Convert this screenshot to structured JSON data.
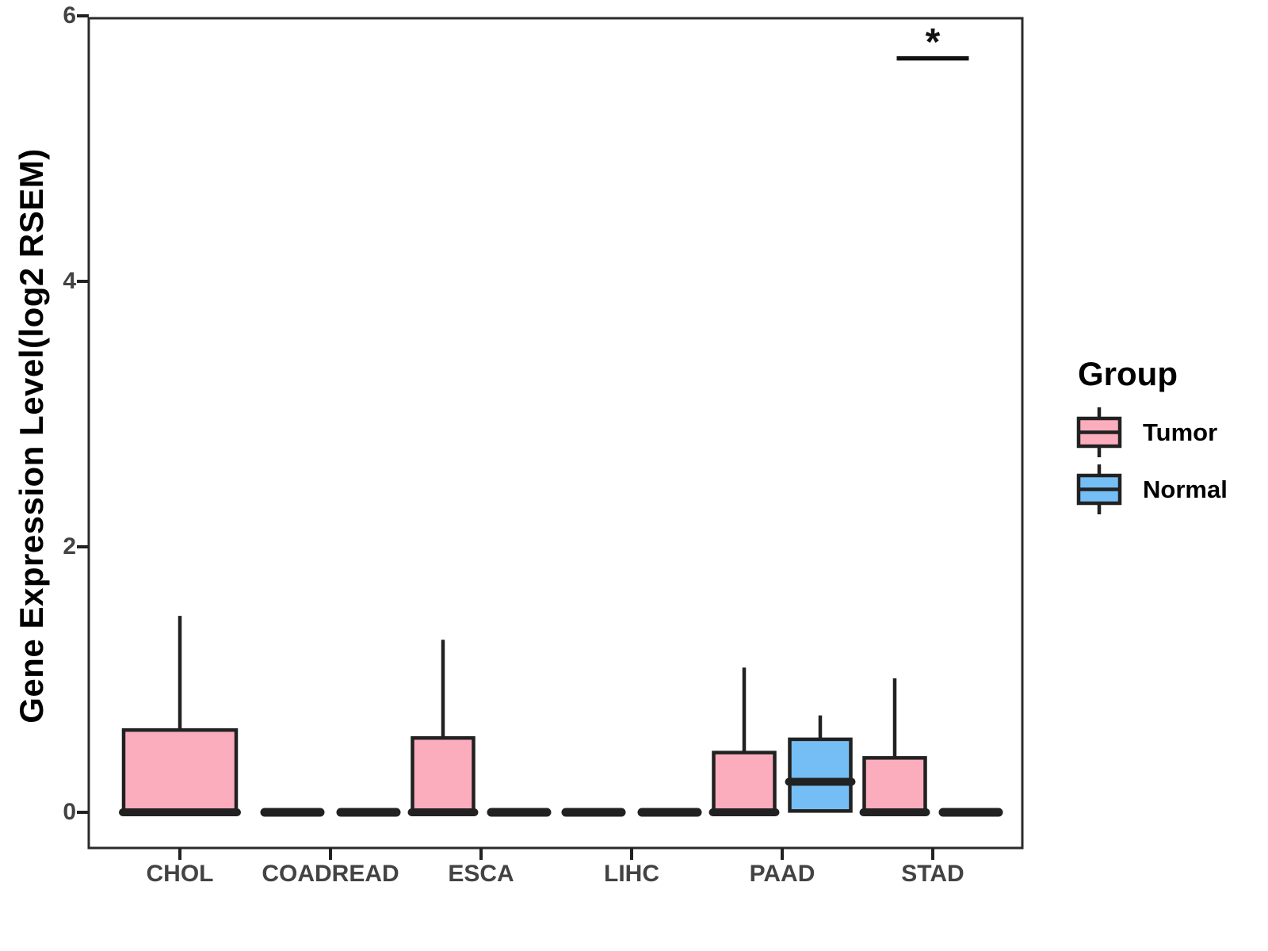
{
  "chart_data": {
    "type": "boxplot",
    "title": "",
    "xlabel": "",
    "ylabel": "Gene Expression Level(log2 RSEM)",
    "ylim": [
      0,
      6
    ],
    "yticks": [
      0,
      2,
      4,
      6
    ],
    "categories": [
      "CHOL",
      "COADREAD",
      "ESCA",
      "LIHC",
      "PAAD",
      "STAD"
    ],
    "groups": [
      {
        "name": "Tumor",
        "color": "#FBADBD"
      },
      {
        "name": "Normal",
        "color": "#75BEF5"
      }
    ],
    "legend": {
      "title": "Group",
      "position": "right"
    },
    "series": [
      {
        "category": "CHOL",
        "group": "Tumor",
        "min": 0,
        "q1": 0,
        "median": 0,
        "q3": 0.62,
        "max": 1.48,
        "full_width": true
      },
      {
        "category": "COADREAD",
        "group": "Tumor",
        "min": 0,
        "q1": 0,
        "median": 0,
        "q3": 0,
        "max": 0
      },
      {
        "category": "COADREAD",
        "group": "Normal",
        "min": 0,
        "q1": 0,
        "median": 0,
        "q3": 0,
        "max": 0
      },
      {
        "category": "ESCA",
        "group": "Tumor",
        "min": 0,
        "q1": 0,
        "median": 0,
        "q3": 0.56,
        "max": 1.3
      },
      {
        "category": "ESCA",
        "group": "Normal",
        "min": 0,
        "q1": 0,
        "median": 0,
        "q3": 0,
        "max": 0
      },
      {
        "category": "LIHC",
        "group": "Tumor",
        "min": 0,
        "q1": 0,
        "median": 0,
        "q3": 0,
        "max": 0
      },
      {
        "category": "LIHC",
        "group": "Normal",
        "min": 0,
        "q1": 0,
        "median": 0,
        "q3": 0,
        "max": 0
      },
      {
        "category": "PAAD",
        "group": "Tumor",
        "min": 0,
        "q1": 0,
        "median": 0,
        "q3": 0.45,
        "max": 1.09
      },
      {
        "category": "PAAD",
        "group": "Normal",
        "min": 0.01,
        "q1": 0.01,
        "median": 0.23,
        "q3": 0.55,
        "max": 0.73
      },
      {
        "category": "STAD",
        "group": "Tumor",
        "min": 0,
        "q1": 0,
        "median": 0,
        "q3": 0.41,
        "max": 1.01
      },
      {
        "category": "STAD",
        "group": "Normal",
        "min": 0,
        "q1": 0,
        "median": 0,
        "q3": 0,
        "max": 0
      }
    ],
    "significance": {
      "label": "*",
      "category": "STAD",
      "y": 5.68
    },
    "colors": {
      "line": "#212121",
      "panel_border": "#2b2b2b",
      "tick_label": "#434343",
      "axis_title": "#000000",
      "sig_line": "#111111"
    }
  }
}
